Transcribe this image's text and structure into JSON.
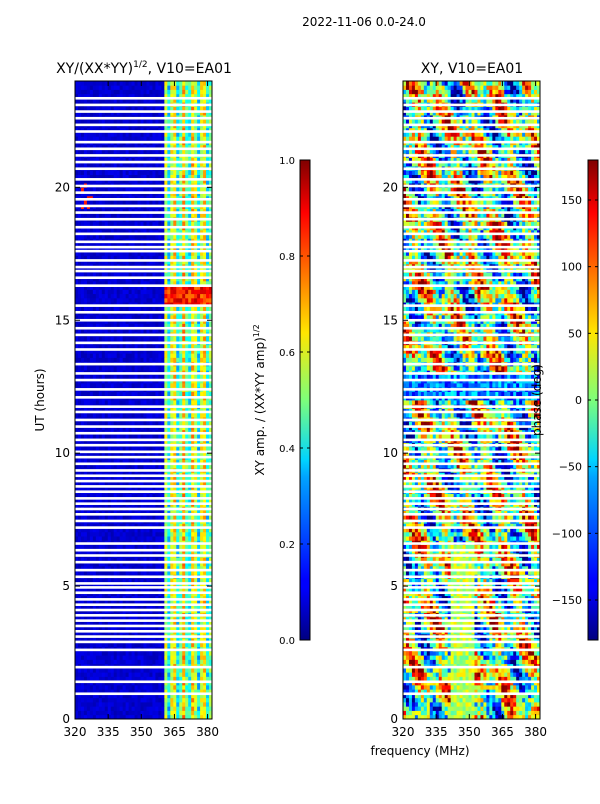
{
  "figure": {
    "suptitle": "2022-11-06 0.0-24.0",
    "shared_xlabel": "frequency (MHz)"
  },
  "chart_data": [
    {
      "type": "heatmap",
      "title": "XY/(XX*YY)",
      "title_exp": "1/2",
      "title_suffix": ", V10=EA01",
      "ylabel": "UT (hours)",
      "xlim": [
        320,
        382
      ],
      "ylim": [
        0,
        24
      ],
      "xticks": [
        320,
        335,
        350,
        365,
        380
      ],
      "yticks": [
        0,
        5,
        10,
        15,
        20
      ],
      "colorbar": {
        "label": "XY amp. / (XX*YY amp)",
        "label_exp": "1/2",
        "range": [
          0.0,
          1.0
        ],
        "ticks": [
          "0.0",
          "0.2",
          "0.4",
          "0.6",
          "0.8",
          "1.0"
        ],
        "tick_values": [
          0.0,
          0.2,
          0.4,
          0.6,
          0.8,
          1.0
        ],
        "colormap": "jet"
      },
      "flagged_hours": [
        0.95,
        1.4,
        1.95,
        2.6,
        2.9,
        3.1,
        3.3,
        3.5,
        3.7,
        3.9,
        4.1,
        4.3,
        4.5,
        4.75,
        4.95,
        5.1,
        5.35,
        5.6,
        5.9,
        6.15,
        6.35,
        6.6,
        7.2,
        7.45,
        7.7,
        7.9,
        8.1,
        8.3,
        8.55,
        8.75,
        8.95,
        9.15,
        9.35,
        9.6,
        9.85,
        10.05,
        10.3,
        10.5,
        10.75,
        11.0,
        11.25,
        11.55,
        11.75,
        12.1,
        12.4,
        12.75,
        13.0,
        13.35,
        13.9,
        14.15,
        14.45,
        14.7,
        15.0,
        15.3,
        15.55,
        16.3,
        16.6,
        16.85,
        17.0,
        17.25,
        17.6,
        17.75,
        17.95,
        18.25,
        18.5,
        18.8,
        19.05,
        19.3,
        19.55,
        19.8,
        20.05,
        20.3,
        20.7,
        20.95,
        21.2,
        21.45,
        21.7,
        22.1,
        22.35,
        22.6,
        22.85,
        23.1,
        23.35
      ]
    },
    {
      "type": "heatmap",
      "title": "XY, V10=EA01",
      "ylabel": "",
      "xlim": [
        320,
        382
      ],
      "ylim": [
        0,
        24
      ],
      "xticks": [
        320,
        335,
        350,
        365,
        380
      ],
      "yticks": [
        0,
        5,
        10,
        15,
        20
      ],
      "colorbar": {
        "label": "phase (deg)",
        "range": [
          -180,
          180
        ],
        "ticks": [
          "−150",
          "−100",
          "−50",
          "0",
          "50",
          "100",
          "150"
        ],
        "tick_values": [
          -150,
          -100,
          -50,
          0,
          50,
          100,
          150
        ],
        "colormap": "jet"
      },
      "flagged_hours": [
        0.95,
        1.4,
        1.95,
        2.6,
        2.9,
        3.1,
        3.3,
        3.5,
        3.7,
        3.9,
        4.1,
        4.3,
        4.5,
        4.75,
        4.95,
        5.1,
        5.35,
        5.6,
        5.9,
        6.15,
        6.35,
        6.6,
        7.2,
        7.45,
        7.7,
        7.9,
        8.1,
        8.3,
        8.55,
        8.75,
        8.95,
        9.15,
        9.35,
        9.6,
        9.85,
        10.05,
        10.3,
        10.5,
        10.75,
        11.0,
        11.25,
        11.55,
        11.75,
        12.1,
        12.4,
        12.75,
        13.0,
        13.35,
        13.9,
        14.15,
        14.45,
        14.7,
        15.0,
        15.3,
        15.55,
        16.3,
        16.6,
        16.85,
        17.0,
        17.25,
        17.6,
        17.75,
        17.95,
        18.25,
        18.5,
        18.8,
        19.05,
        19.3,
        19.55,
        19.8,
        20.05,
        20.3,
        20.7,
        20.95,
        21.2,
        21.45,
        21.7,
        22.1,
        22.35,
        22.6,
        22.85,
        23.1,
        23.35
      ]
    }
  ]
}
